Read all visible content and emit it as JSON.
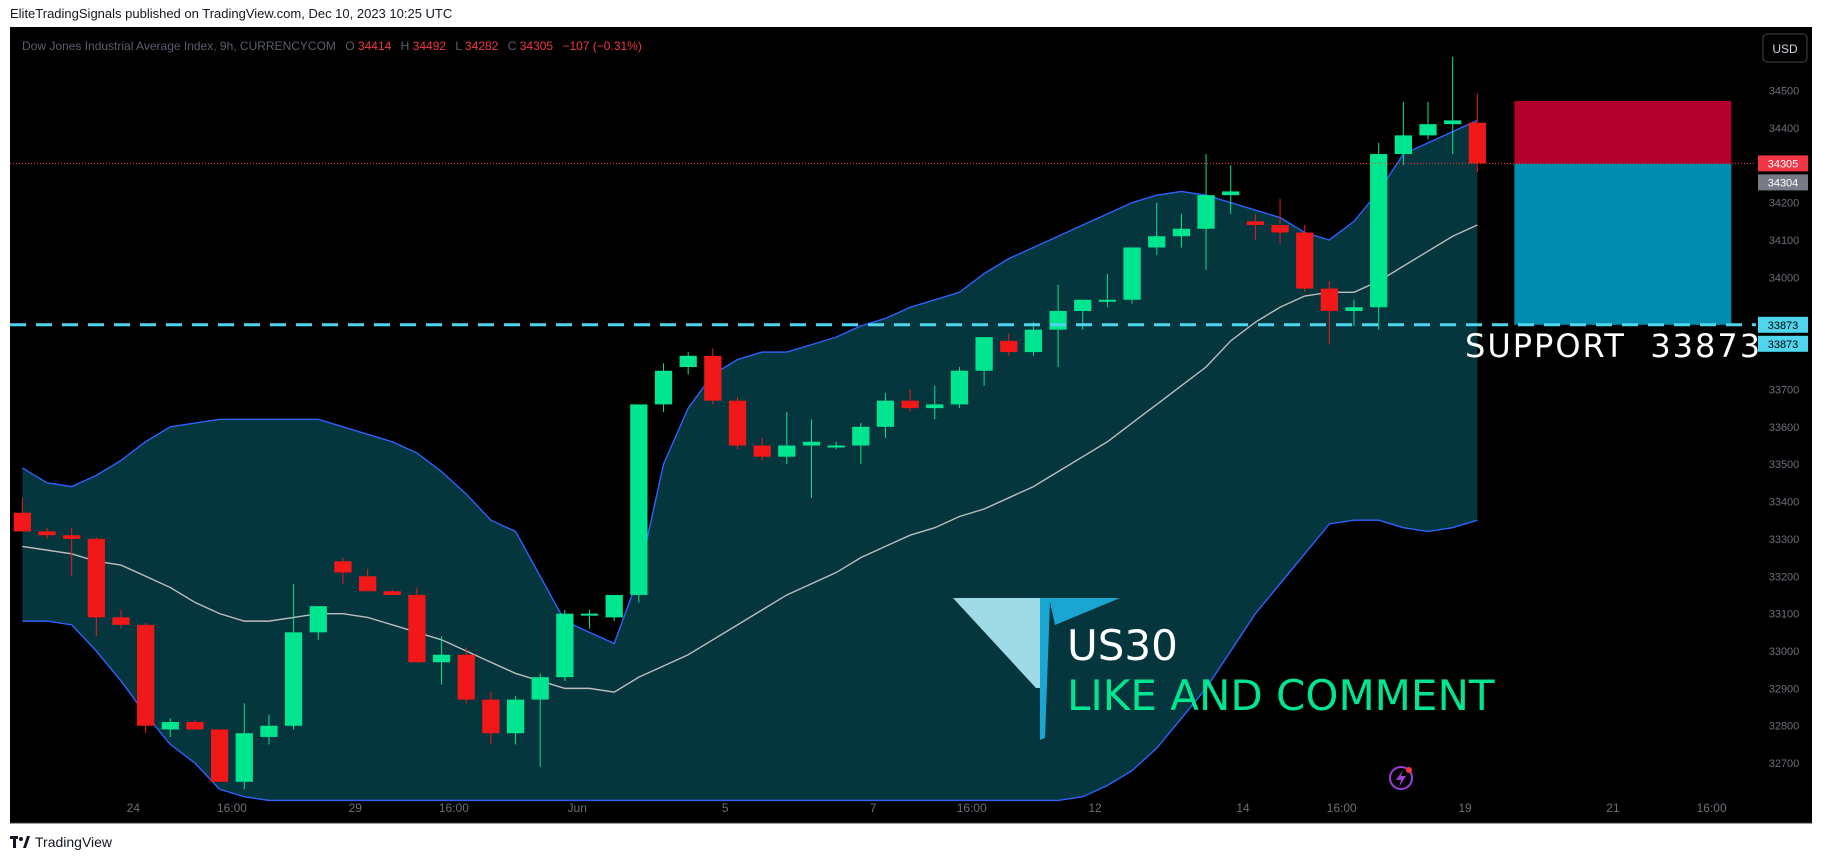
{
  "header": {
    "published_by": "EliteTradingSignals published on TradingView.com, Dec 10, 2023 10:25 UTC"
  },
  "legend": {
    "symbol": "Dow Jones Industrial Average Index, 9h, CURRENCYCOM",
    "open_label": "O",
    "open": "34414",
    "high_label": "H",
    "high": "34492",
    "low_label": "L",
    "low": "34282",
    "close_label": "C",
    "close": "34305",
    "change": "−107 (−0.31%)"
  },
  "currency_button": "USD",
  "footer": {
    "brand": "TradingView",
    "logo_icon": "tradingview-logo-icon"
  },
  "annotations": {
    "support_text": "SUPPORT  33873",
    "logo_title": "US30",
    "logo_subtitle": "LIKE AND COMMENT",
    "logo_icon": "elite-t-logo-icon",
    "flash_icon": "lightning-icon"
  },
  "colors": {
    "background": "#000000",
    "up": "#00e58f",
    "down": "#f01818",
    "band_fill": "#06363d",
    "band_line": "#2d62ff",
    "basis_line": "#bdbdbd",
    "support_line": "#4fd6ee",
    "stop_zone": "#b3002d",
    "target_zone": "#008caf",
    "price_line": "#ff3333"
  },
  "chart_data": {
    "type": "candlestick",
    "timeframe": "9h",
    "price_axis": {
      "ticks": [
        34500,
        34400,
        34200,
        34100,
        34000,
        33700,
        33600,
        33500,
        33400,
        33300,
        33200,
        33100,
        33000,
        32900,
        32800,
        32700
      ],
      "labels": [
        "34500",
        "34400",
        "34200",
        "34100",
        "34000",
        "33700",
        "33600",
        "33500",
        "33400",
        "33300",
        "33200",
        "33100",
        "33000",
        "32900",
        "32800",
        "32700"
      ],
      "ylim": [
        32620,
        34670
      ]
    },
    "time_axis": {
      "labels": [
        {
          "text": "24",
          "index": 4.5
        },
        {
          "text": "16:00",
          "index": 8.5
        },
        {
          "text": "29",
          "index": 13.5
        },
        {
          "text": "16:00",
          "index": 17.5
        },
        {
          "text": "Jun",
          "index": 22.5
        },
        {
          "text": "5",
          "index": 28.5
        },
        {
          "text": "7",
          "index": 34.5
        },
        {
          "text": "16:00",
          "index": 38.5
        },
        {
          "text": "12",
          "index": 43.5
        },
        {
          "text": "14",
          "index": 49.5
        },
        {
          "text": "16:00",
          "index": 53.5
        },
        {
          "text": "19",
          "index": 58.5
        },
        {
          "text": "21",
          "index": 64.5
        },
        {
          "text": "16:00",
          "index": 68.5
        }
      ],
      "xlim": [
        -0.5,
        70.3
      ]
    },
    "candles": [
      {
        "o": 33370,
        "h": 33410,
        "l": 33320,
        "c": 33320
      },
      {
        "o": 33320,
        "h": 33330,
        "l": 33300,
        "c": 33310
      },
      {
        "o": 33310,
        "h": 33330,
        "l": 33200,
        "c": 33300
      },
      {
        "o": 33300,
        "h": 33305,
        "l": 33040,
        "c": 33090
      },
      {
        "o": 33090,
        "h": 33110,
        "l": 33060,
        "c": 33070
      },
      {
        "o": 33070,
        "h": 33075,
        "l": 32780,
        "c": 32800
      },
      {
        "o": 32790,
        "h": 32820,
        "l": 32770,
        "c": 32810
      },
      {
        "o": 32810,
        "h": 32815,
        "l": 32790,
        "c": 32790
      },
      {
        "o": 32790,
        "h": 32790,
        "l": 32660,
        "c": 32650
      },
      {
        "o": 32650,
        "h": 32860,
        "l": 32630,
        "c": 32780
      },
      {
        "o": 32770,
        "h": 32830,
        "l": 32750,
        "c": 32800
      },
      {
        "o": 32800,
        "h": 33180,
        "l": 32790,
        "c": 33050
      },
      {
        "o": 33050,
        "h": 33120,
        "l": 33030,
        "c": 33120
      },
      {
        "o": 33240,
        "h": 33250,
        "l": 33180,
        "c": 33210
      },
      {
        "o": 33200,
        "h": 33220,
        "l": 33170,
        "c": 33160
      },
      {
        "o": 33160,
        "h": 33165,
        "l": 33150,
        "c": 33150
      },
      {
        "o": 33150,
        "h": 33170,
        "l": 32970,
        "c": 32970
      },
      {
        "o": 32970,
        "h": 33040,
        "l": 32910,
        "c": 32990
      },
      {
        "o": 32990,
        "h": 33010,
        "l": 32860,
        "c": 32870
      },
      {
        "o": 32870,
        "h": 32890,
        "l": 32750,
        "c": 32780
      },
      {
        "o": 32780,
        "h": 32880,
        "l": 32750,
        "c": 32870
      },
      {
        "o": 32870,
        "h": 32940,
        "l": 32690,
        "c": 32930
      },
      {
        "o": 32930,
        "h": 33110,
        "l": 32920,
        "c": 33100
      },
      {
        "o": 33100,
        "h": 33110,
        "l": 33060,
        "c": 33100
      },
      {
        "o": 33090,
        "h": 33150,
        "l": 33080,
        "c": 33150
      },
      {
        "o": 33150,
        "h": 33660,
        "l": 33130,
        "c": 33660
      },
      {
        "o": 33660,
        "h": 33770,
        "l": 33640,
        "c": 33750
      },
      {
        "o": 33760,
        "h": 33800,
        "l": 33740,
        "c": 33790
      },
      {
        "o": 33790,
        "h": 33810,
        "l": 33660,
        "c": 33670
      },
      {
        "o": 33670,
        "h": 33680,
        "l": 33540,
        "c": 33550
      },
      {
        "o": 33550,
        "h": 33570,
        "l": 33510,
        "c": 33520
      },
      {
        "o": 33520,
        "h": 33640,
        "l": 33500,
        "c": 33550
      },
      {
        "o": 33550,
        "h": 33620,
        "l": 33410,
        "c": 33560
      },
      {
        "o": 33550,
        "h": 33560,
        "l": 33540,
        "c": 33550
      },
      {
        "o": 33550,
        "h": 33610,
        "l": 33500,
        "c": 33600
      },
      {
        "o": 33600,
        "h": 33690,
        "l": 33570,
        "c": 33670
      },
      {
        "o": 33670,
        "h": 33700,
        "l": 33640,
        "c": 33650
      },
      {
        "o": 33650,
        "h": 33710,
        "l": 33620,
        "c": 33660
      },
      {
        "o": 33660,
        "h": 33760,
        "l": 33650,
        "c": 33750
      },
      {
        "o": 33750,
        "h": 33840,
        "l": 33710,
        "c": 33840
      },
      {
        "o": 33830,
        "h": 33850,
        "l": 33790,
        "c": 33800
      },
      {
        "o": 33800,
        "h": 33880,
        "l": 33790,
        "c": 33860
      },
      {
        "o": 33860,
        "h": 33980,
        "l": 33760,
        "c": 33910
      },
      {
        "o": 33910,
        "h": 33940,
        "l": 33860,
        "c": 33940
      },
      {
        "o": 33940,
        "h": 34010,
        "l": 33920,
        "c": 33940
      },
      {
        "o": 33940,
        "h": 34080,
        "l": 33930,
        "c": 34080
      },
      {
        "o": 34080,
        "h": 34200,
        "l": 34060,
        "c": 34110
      },
      {
        "o": 34110,
        "h": 34170,
        "l": 34080,
        "c": 34130
      },
      {
        "o": 34130,
        "h": 34330,
        "l": 34020,
        "c": 34220
      },
      {
        "o": 34220,
        "h": 34300,
        "l": 34170,
        "c": 34230
      },
      {
        "o": 34150,
        "h": 34170,
        "l": 34100,
        "c": 34140
      },
      {
        "o": 34140,
        "h": 34210,
        "l": 34090,
        "c": 34120
      },
      {
        "o": 34120,
        "h": 34140,
        "l": 33960,
        "c": 33970
      },
      {
        "o": 33970,
        "h": 33990,
        "l": 33820,
        "c": 33910
      },
      {
        "o": 33910,
        "h": 33940,
        "l": 33870,
        "c": 33920
      },
      {
        "o": 33920,
        "h": 34360,
        "l": 33860,
        "c": 34330
      },
      {
        "o": 34330,
        "h": 34470,
        "l": 34300,
        "c": 34380
      },
      {
        "o": 34380,
        "h": 34470,
        "l": 34370,
        "c": 34410
      },
      {
        "o": 34410,
        "h": 34590,
        "l": 34330,
        "c": 34420
      },
      {
        "o": 34414,
        "h": 34492,
        "l": 34282,
        "c": 34305
      }
    ],
    "bollinger": {
      "upper": [
        33490,
        33450,
        33440,
        33470,
        33510,
        33560,
        33600,
        33610,
        33620,
        33620,
        33620,
        33620,
        33620,
        33600,
        33580,
        33560,
        33530,
        33480,
        33420,
        33350,
        33320,
        33200,
        33080,
        33050,
        33020,
        33200,
        33500,
        33650,
        33740,
        33780,
        33800,
        33800,
        33820,
        33840,
        33870,
        33890,
        33920,
        33940,
        33960,
        34010,
        34050,
        34080,
        34110,
        34140,
        34170,
        34200,
        34220,
        34230,
        34220,
        34200,
        34180,
        34160,
        34120,
        34100,
        34150,
        34230,
        34330,
        34360,
        34390,
        34420
      ],
      "lower": [
        33080,
        33080,
        33070,
        33000,
        32920,
        32830,
        32750,
        32700,
        32630,
        32610,
        32600,
        32600,
        32600,
        32600,
        32600,
        32600,
        32600,
        32600,
        32600,
        32600,
        32600,
        32600,
        32600,
        32600,
        32600,
        32600,
        32600,
        32600,
        32600,
        32600,
        32600,
        32600,
        32600,
        32600,
        32600,
        32600,
        32600,
        32600,
        32600,
        32600,
        32600,
        32600,
        32600,
        32610,
        32640,
        32680,
        32740,
        32820,
        32900,
        33000,
        33100,
        33180,
        33260,
        33340,
        33350,
        33350,
        33330,
        33320,
        33330,
        33350
      ],
      "basis": [
        33280,
        33270,
        33260,
        33240,
        33230,
        33200,
        33170,
        33130,
        33100,
        33080,
        33080,
        33090,
        33100,
        33100,
        33090,
        33070,
        33050,
        33030,
        33000,
        32970,
        32940,
        32920,
        32900,
        32900,
        32890,
        32930,
        32960,
        32990,
        33030,
        33070,
        33110,
        33150,
        33180,
        33210,
        33250,
        33280,
        33310,
        33330,
        33360,
        33380,
        33410,
        33440,
        33480,
        33520,
        33560,
        33610,
        33660,
        33710,
        33760,
        33830,
        33880,
        33920,
        33950,
        33960,
        33960,
        33990,
        34030,
        34070,
        34110,
        34140
      ]
    },
    "support_level": 33873,
    "support_label": "33873",
    "last_price": 34305,
    "last_price_label": "34305",
    "secondary_price_label": "34304",
    "position": {
      "entry": 34304,
      "stop": 34472,
      "target": 33873,
      "start_index": 60.5,
      "end_index": 69.3
    }
  }
}
